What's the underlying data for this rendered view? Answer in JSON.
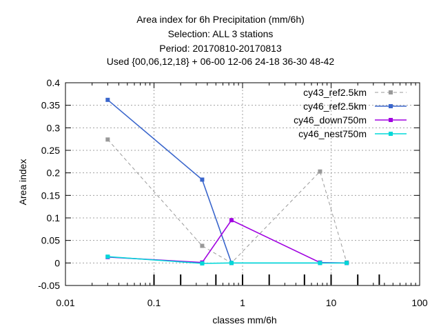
{
  "chart_data": {
    "type": "line",
    "title_lines": [
      "Area index  for 6h Precipitation (mm/6h)",
      "Selection: ALL      3 stations",
      "Period: 20170810-20170813",
      "Used {00,06,12,18} + 06-00 12-06 24-18 36-30 48-42"
    ],
    "xlabel": "classes mm/6h",
    "ylabel": "Area index",
    "x_scale": "log",
    "xlim": [
      0.01,
      100
    ],
    "ylim": [
      -0.05,
      0.4
    ],
    "x_ticks": [
      {
        "value": 0.01,
        "label": "0.01"
      },
      {
        "value": 0.1,
        "label": "0.1"
      },
      {
        "value": 1,
        "label": "1"
      },
      {
        "value": 10,
        "label": "10"
      },
      {
        "value": 100,
        "label": "100"
      }
    ],
    "y_ticks": [
      {
        "value": -0.05,
        "label": "-0.05"
      },
      {
        "value": 0,
        "label": "0"
      },
      {
        "value": 0.05,
        "label": "0.05"
      },
      {
        "value": 0.1,
        "label": "0.1"
      },
      {
        "value": 0.15,
        "label": "0.15"
      },
      {
        "value": 0.2,
        "label": "0.2"
      },
      {
        "value": 0.25,
        "label": "0.25"
      },
      {
        "value": 0.3,
        "label": "0.3"
      },
      {
        "value": 0.35,
        "label": "0.35"
      },
      {
        "value": 0.4,
        "label": "0.4"
      }
    ],
    "class_markers": [
      0.1,
      0.2,
      0.5,
      1,
      2,
      5,
      10,
      20,
      35
    ],
    "grid": true,
    "legend_position": "top-right",
    "series": [
      {
        "name": "cy43_ref2.5km",
        "color": "#999999",
        "dashed": true,
        "x": [
          0.03,
          0.35,
          0.75,
          7.5,
          15
        ],
        "y": [
          0.274,
          0.038,
          0.0,
          0.203,
          0.001
        ]
      },
      {
        "name": "cy46_ref2.5km",
        "color": "#3a66cc",
        "dashed": false,
        "x": [
          0.03,
          0.35,
          0.75,
          7.5,
          15
        ],
        "y": [
          0.362,
          0.185,
          0.0,
          0.0,
          0.0
        ]
      },
      {
        "name": "cy46_down750m",
        "color": "#a000e0",
        "dashed": false,
        "x": [
          0.03,
          0.35,
          0.75,
          7.5,
          15
        ],
        "y": [
          0.013,
          0.001,
          0.095,
          0.001,
          0.0
        ]
      },
      {
        "name": "cy46_nest750m",
        "color": "#00d8d8",
        "dashed": false,
        "x": [
          0.03,
          0.35,
          0.75,
          7.5,
          15
        ],
        "y": [
          0.014,
          -0.001,
          0.0,
          0.0,
          0.0
        ]
      }
    ]
  }
}
